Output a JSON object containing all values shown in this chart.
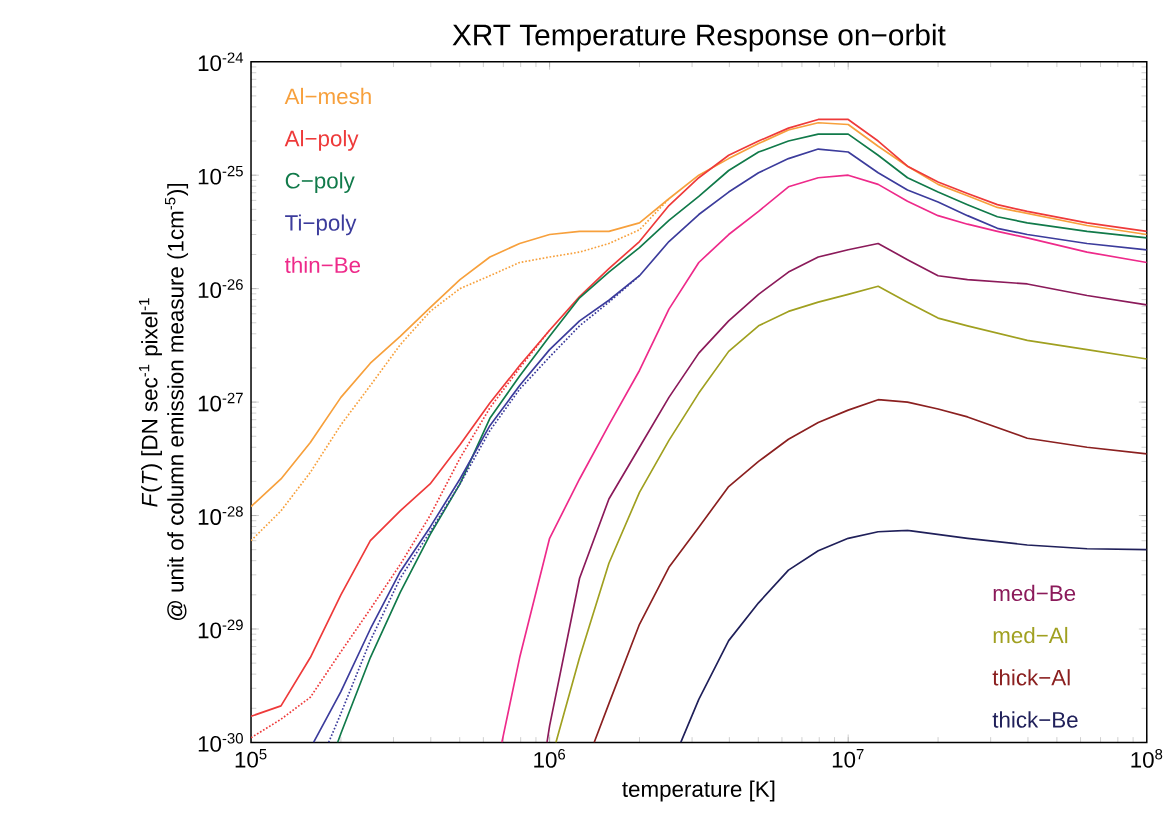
{
  "chart_data": {
    "type": "line",
    "title": "XRT Temperature Response on−orbit",
    "xlabel": "temperature [K]",
    "ylabel": [
      "*F*(*T*)  [DN sec$^{-1}$ pixel$^{-1}$",
      "@ unit of column emission measure (1cm$^{-5}$)]"
    ],
    "log": "xy",
    "xlim": [
      100000.0,
      100000000.0
    ],
    "ylim": [
      1e-30,
      1e-24
    ],
    "xticks": [
      {
        "value": 100000.0,
        "label": "10$^{5}$"
      },
      {
        "value": 1000000.0,
        "label": "10$^{6}$"
      },
      {
        "value": 10000000.0,
        "label": "10$^{7}$"
      },
      {
        "value": 100000000.0,
        "label": "10$^{8}$"
      }
    ],
    "yticks": [
      {
        "value": 1e-30,
        "label": "10$^{-30}$"
      },
      {
        "value": 1e-29,
        "label": "10$^{-29}$"
      },
      {
        "value": 1e-28,
        "label": "10$^{-28}$"
      },
      {
        "value": 1e-27,
        "label": "10$^{-27}$"
      },
      {
        "value": 1e-26,
        "label": "10$^{-26}$"
      },
      {
        "value": 1e-25,
        "label": "10$^{-25}$"
      },
      {
        "value": 1e-24,
        "label": "10$^{-24}$"
      }
    ],
    "series": [
      {
        "name": "Al−mesh",
        "color": "#f7a03c",
        "x": [
          100000.0,
          126000.0,
          158000.0,
          200000.0,
          251000.0,
          316000.0,
          398000.0,
          501000.0,
          631000.0,
          794000.0,
          1000000.0,
          1260000.0,
          1580000.0,
          2000000.0,
          2510000.0,
          3160000.0,
          3980000.0,
          5010000.0,
          6310000.0,
          7940000.0,
          10000000.0,
          12600000.0,
          15800000.0,
          20000000.0,
          25100000.0,
          31600000.0,
          39800000.0,
          63100000.0,
          100000000.0
        ],
        "values": [
          1.2e-28,
          2.1e-28,
          4.4e-28,
          1.1e-27,
          2.2e-27,
          3.8e-27,
          6.8e-27,
          1.2e-26,
          1.9e-26,
          2.5e-26,
          3e-26,
          3.2e-26,
          3.2e-26,
          3.8e-26,
          6.2e-26,
          1e-25,
          1.4e-25,
          1.9e-25,
          2.5e-25,
          2.9e-25,
          2.8e-25,
          1.8e-25,
          1.2e-25,
          8.3e-26,
          6.6e-26,
          5.2e-26,
          4.6e-26,
          3.6e-26,
          3e-26
        ]
      },
      {
        "name": "Al−poly",
        "color": "#ee3a3a",
        "x": [
          100000.0,
          126000.0,
          158000.0,
          200000.0,
          251000.0,
          316000.0,
          398000.0,
          501000.0,
          631000.0,
          794000.0,
          1000000.0,
          1260000.0,
          1580000.0,
          2000000.0,
          2510000.0,
          3160000.0,
          3980000.0,
          5010000.0,
          6310000.0,
          7940000.0,
          10000000.0,
          12600000.0,
          15800000.0,
          20000000.0,
          25100000.0,
          31600000.0,
          39800000.0,
          63100000.0,
          100000000.0
        ],
        "values": [
          1.7e-30,
          2.1e-30,
          5.6e-30,
          2e-29,
          6e-29,
          1.1e-28,
          1.9e-28,
          4.2e-28,
          9.8e-28,
          2.1e-27,
          4.3e-27,
          8.5e-27,
          1.5e-26,
          2.6e-26,
          5.4e-26,
          9.5e-26,
          1.5e-25,
          2e-25,
          2.6e-25,
          3.1e-25,
          3.1e-25,
          2e-25,
          1.2e-25,
          8.7e-26,
          6.9e-26,
          5.5e-26,
          4.8e-26,
          3.8e-26,
          3.2e-26
        ]
      },
      {
        "name": "C−poly",
        "color": "#117a4a",
        "x": [
          195000.0,
          200000.0,
          251000.0,
          316000.0,
          398000.0,
          501000.0,
          631000.0,
          794000.0,
          1000000.0,
          1260000.0,
          1580000.0,
          2000000.0,
          2510000.0,
          3160000.0,
          3980000.0,
          5010000.0,
          6310000.0,
          7940000.0,
          10000000.0,
          12600000.0,
          15800000.0,
          20000000.0,
          25100000.0,
          31600000.0,
          39800000.0,
          63100000.0,
          100000000.0
        ],
        "values": [
          1e-30,
          1.2e-30,
          5.6e-30,
          2.1e-29,
          6.8e-29,
          1.9e-28,
          7.2e-28,
          1.7e-27,
          3.8e-27,
          8.3e-27,
          1.4e-26,
          2.3e-26,
          4e-26,
          6.5e-26,
          1.1e-25,
          1.6e-25,
          2e-25,
          2.3e-25,
          2.3e-25,
          1.5e-25,
          9.5e-26,
          7.1e-26,
          5.5e-26,
          4.3e-26,
          3.8e-26,
          3.2e-26,
          2.8e-26
        ]
      },
      {
        "name": "Ti−poly",
        "color": "#3c3c9c",
        "x": [
          162000.0,
          200000.0,
          251000.0,
          316000.0,
          398000.0,
          501000.0,
          631000.0,
          794000.0,
          1000000.0,
          1260000.0,
          1580000.0,
          2000000.0,
          2510000.0,
          3160000.0,
          3980000.0,
          5010000.0,
          6310000.0,
          7940000.0,
          10000000.0,
          12600000.0,
          15800000.0,
          20000000.0,
          25100000.0,
          31600000.0,
          39800000.0,
          63100000.0,
          100000000.0
        ],
        "values": [
          1e-30,
          2.8e-30,
          1e-29,
          3.2e-29,
          7.9e-29,
          2.1e-28,
          6.2e-28,
          1.4e-27,
          2.9e-27,
          5.2e-27,
          7.9e-27,
          1.3e-26,
          2.6e-26,
          4.5e-26,
          7.1e-26,
          1.05e-25,
          1.4e-25,
          1.7e-25,
          1.6e-25,
          1.05e-25,
          7.4e-26,
          5.8e-26,
          4.4e-26,
          3.4e-26,
          3e-26,
          2.5e-26,
          2.2e-26
        ]
      },
      {
        "name": "thin−Be",
        "color": "#ee2a8a",
        "x": [
          692000.0,
          794000.0,
          1000000.0,
          1260000.0,
          1580000.0,
          2000000.0,
          2510000.0,
          3160000.0,
          3980000.0,
          5010000.0,
          6310000.0,
          7940000.0,
          10000000.0,
          12600000.0,
          15800000.0,
          20000000.0,
          25100000.0,
          31600000.0,
          39800000.0,
          63100000.0,
          100000000.0
        ],
        "values": [
          1e-30,
          5.6e-30,
          6.3e-29,
          2.1e-28,
          6.3e-28,
          1.9e-27,
          6.6e-27,
          1.7e-26,
          3e-26,
          4.8e-26,
          7.9e-26,
          9.5e-26,
          1e-25,
          8.3e-26,
          5.9e-26,
          4.4e-26,
          3.7e-26,
          3.2e-26,
          2.8e-26,
          2.1e-26,
          1.7e-26
        ]
      },
      {
        "name": "med−Be",
        "color": "#8b1a5a",
        "x": [
          980000.0,
          1000000.0,
          1260000.0,
          1580000.0,
          2000000.0,
          2510000.0,
          3160000.0,
          3980000.0,
          5010000.0,
          6310000.0,
          7940000.0,
          10000000.0,
          12600000.0,
          15800000.0,
          20000000.0,
          25100000.0,
          39800000.0,
          63100000.0,
          100000000.0
        ],
        "values": [
          1e-30,
          1.4e-30,
          2.8e-29,
          1.4e-28,
          4e-28,
          1.1e-27,
          2.7e-27,
          5.2e-27,
          8.9e-27,
          1.4e-26,
          1.9e-26,
          2.2e-26,
          2.5e-26,
          1.8e-26,
          1.3e-26,
          1.2e-26,
          1.1e-26,
          8.7e-27,
          7.2e-27
        ]
      },
      {
        "name": "med−Al",
        "color": "#a0a020",
        "x": [
          1050000.0,
          1260000.0,
          1580000.0,
          2000000.0,
          2510000.0,
          3160000.0,
          3980000.0,
          5010000.0,
          6310000.0,
          7940000.0,
          10000000.0,
          12600000.0,
          15800000.0,
          20000000.0,
          25100000.0,
          39800000.0,
          63100000.0,
          100000000.0
        ],
        "values": [
          1e-30,
          5.6e-30,
          3.8e-29,
          1.6e-28,
          4.6e-28,
          1.2e-27,
          2.8e-27,
          4.7e-27,
          6.3e-27,
          7.6e-27,
          8.9e-27,
          1.05e-26,
          7.6e-27,
          5.5e-27,
          4.7e-27,
          3.5e-27,
          2.9e-27,
          2.4e-27
        ]
      },
      {
        "name": "thick−Al",
        "color": "#8b2020",
        "x": [
          1410000.0,
          1580000.0,
          2000000.0,
          2510000.0,
          3160000.0,
          3980000.0,
          5010000.0,
          6310000.0,
          7940000.0,
          10000000.0,
          12600000.0,
          15800000.0,
          20000000.0,
          25100000.0,
          39800000.0,
          63100000.0,
          100000000.0
        ],
        "values": [
          1e-30,
          2.2e-30,
          1.1e-29,
          3.5e-29,
          7.9e-29,
          1.8e-28,
          3e-28,
          4.7e-28,
          6.6e-28,
          8.5e-28,
          1.05e-27,
          1e-27,
          8.7e-28,
          7.4e-28,
          4.8e-28,
          4e-28,
          3.5e-28
        ]
      },
      {
        "name": "thick−Be",
        "color": "#20205a",
        "x": [
          2750000.0,
          3160000.0,
          3980000.0,
          5010000.0,
          6310000.0,
          7940000.0,
          10000000.0,
          12600000.0,
          15800000.0,
          25100000.0,
          39800000.0,
          63100000.0,
          100000000.0
        ],
        "values": [
          1e-30,
          2.4e-30,
          7.9e-30,
          1.7e-29,
          3.3e-29,
          4.9e-29,
          6.3e-29,
          7.2e-29,
          7.4e-29,
          6.3e-29,
          5.5e-29,
          5.1e-29,
          5e-29
        ]
      },
      {
        "color": "#f7a03c",
        "line_style": "dotted",
        "x": [
          100000.0,
          126000.0,
          158000.0,
          200000.0,
          251000.0,
          316000.0,
          398000.0,
          501000.0,
          631000.0,
          794000.0,
          1000000.0,
          1260000.0,
          1580000.0,
          2000000.0,
          2510000.0
        ],
        "values": [
          6e-29,
          1.1e-28,
          2.4e-28,
          6.3e-28,
          1.4e-27,
          3.2e-27,
          6.3e-27,
          1e-26,
          1.3e-26,
          1.7e-26,
          1.9e-26,
          2.1e-26,
          2.5e-26,
          3.3e-26,
          6.2e-26
        ]
      },
      {
        "color": "#ee3a3a",
        "line_style": "dotted",
        "x": [
          100000.0,
          126000.0,
          158000.0,
          200000.0,
          251000.0,
          316000.0,
          398000.0,
          501000.0,
          631000.0,
          794000.0,
          1000000.0
        ],
        "values": [
          1.1e-30,
          1.6e-30,
          2.5e-30,
          6.3e-30,
          1.5e-29,
          3.7e-29,
          1e-28,
          3.2e-28,
          8.9e-28,
          2e-27,
          4.3e-27
        ]
      },
      {
        "color": "#3c3c9c",
        "line_style": "dotted",
        "x": [
          182000.0,
          200000.0,
          251000.0,
          316000.0,
          398000.0,
          501000.0,
          631000.0,
          794000.0,
          1000000.0,
          1260000.0,
          1580000.0,
          2000000.0
        ],
        "values": [
          1e-30,
          1.8e-30,
          7.9e-30,
          2.8e-29,
          7.2e-29,
          1.9e-28,
          5.6e-28,
          1.3e-27,
          2.5e-27,
          4.7e-27,
          7.6e-27,
          1.3e-26
        ]
      }
    ]
  }
}
